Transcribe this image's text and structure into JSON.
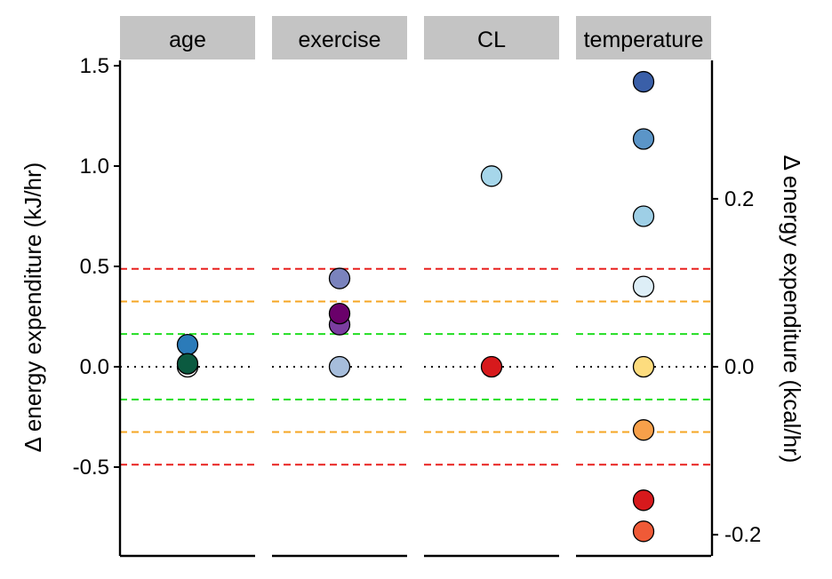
{
  "chart_data": {
    "type": "scatter",
    "facets": [
      "age",
      "exercise",
      "CL",
      "temperature"
    ],
    "ylabel_left": "Δ energy expenditure (kJ/hr)",
    "ylabel_right": "Δ energy expenditure (kcal/hr)",
    "ylim": [
      -0.9,
      1.55
    ],
    "left_ticks": [
      1.5,
      1.0,
      0.5,
      0.0,
      -0.5
    ],
    "left_tick_labels": [
      "1.5",
      "1.0",
      "0.5",
      "0.0",
      "-0.5"
    ],
    "right_ticks_kcal": [
      0.2,
      0.0,
      -0.2
    ],
    "right_tick_labels": [
      "0.2",
      "0.0",
      "-0.2"
    ],
    "kj_per_kcal": 4.184,
    "reference_lines": [
      {
        "y": 0.0,
        "color": "#000000",
        "style": "dotted"
      },
      {
        "y": 0.163,
        "color": "#22dd22",
        "style": "dashed"
      },
      {
        "y": -0.163,
        "color": "#22dd22",
        "style": "dashed"
      },
      {
        "y": 0.325,
        "color": "#f5a623",
        "style": "dashed"
      },
      {
        "y": -0.325,
        "color": "#f5a623",
        "style": "dashed"
      },
      {
        "y": 0.488,
        "color": "#e8201e",
        "style": "dashed"
      },
      {
        "y": -0.488,
        "color": "#e8201e",
        "style": "dashed"
      }
    ],
    "points": [
      {
        "facet": "age",
        "y": 0.0,
        "color": "#ffffff"
      },
      {
        "facet": "age",
        "y": 0.11,
        "color": "#2b7bb9"
      },
      {
        "facet": "age",
        "y": 0.015,
        "color": "#0b5a40"
      },
      {
        "facet": "exercise",
        "y": 0.0,
        "color": "#a6bddb"
      },
      {
        "facet": "exercise",
        "y": 0.44,
        "color": "#7a83bd"
      },
      {
        "facet": "exercise",
        "y": 0.21,
        "color": "#7b3ea0"
      },
      {
        "facet": "exercise",
        "y": 0.265,
        "color": "#6a006a"
      },
      {
        "facet": "CL",
        "y": 0.0,
        "color": "#d7191c"
      },
      {
        "facet": "CL",
        "y": 0.95,
        "color": "#a6d6ea"
      },
      {
        "facet": "temperature",
        "y": 1.42,
        "color": "#3a5fa8"
      },
      {
        "facet": "temperature",
        "y": 1.135,
        "color": "#5b95c8"
      },
      {
        "facet": "temperature",
        "y": 0.75,
        "color": "#9ecfe6"
      },
      {
        "facet": "temperature",
        "y": 0.4,
        "color": "#ddeef7"
      },
      {
        "facet": "temperature",
        "y": 0.0,
        "color": "#fddc7e"
      },
      {
        "facet": "temperature",
        "y": -0.315,
        "color": "#f7a04a"
      },
      {
        "facet": "temperature",
        "y": -0.665,
        "color": "#d7191c"
      },
      {
        "facet": "temperature",
        "y": -0.82,
        "color": "#ef5a37"
      }
    ],
    "strip_color": "#c4c4c4",
    "grid": false
  }
}
